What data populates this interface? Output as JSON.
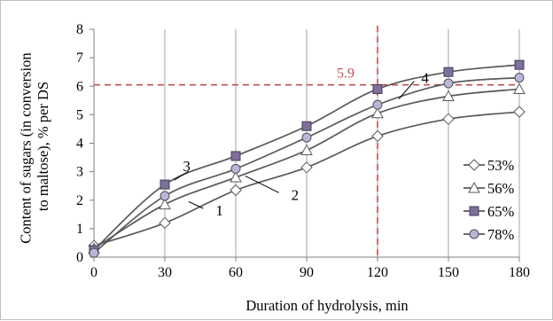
{
  "chart_data": {
    "type": "line",
    "xlabel": "Duration of hydrolysis, min",
    "ylabel_lines": [
      "Content of sugars (in conversion",
      "to maltose), % per DS"
    ],
    "x": [
      0,
      30,
      60,
      90,
      120,
      150,
      180
    ],
    "xlim": [
      0,
      180
    ],
    "ylim": [
      0,
      8
    ],
    "xticks": [
      0,
      30,
      60,
      90,
      120,
      150,
      180
    ],
    "yticks": [
      0,
      1,
      2,
      3,
      4,
      5,
      6,
      7,
      8
    ],
    "grid": "vertical",
    "legend_position": "right",
    "series": [
      {
        "name": "53%",
        "marker": "diamond",
        "values": [
          0.4,
          1.2,
          2.35,
          3.15,
          4.25,
          4.85,
          5.1
        ]
      },
      {
        "name": "56%",
        "marker": "triangle",
        "values": [
          0.3,
          1.85,
          2.8,
          3.75,
          5.05,
          5.65,
          5.9
        ]
      },
      {
        "name": "65%",
        "marker": "square",
        "values": [
          0.25,
          2.55,
          3.55,
          4.6,
          5.9,
          6.5,
          6.75
        ]
      },
      {
        "name": "78%",
        "marker": "circle",
        "values": [
          0.15,
          2.15,
          3.1,
          4.2,
          5.35,
          6.1,
          6.3
        ]
      }
    ],
    "callouts": [
      {
        "label": "1",
        "x": 50,
        "y": 1.65
      },
      {
        "label": "2",
        "x": 82,
        "y": 2.2
      },
      {
        "label": "3",
        "x": 40,
        "y": 3.2
      },
      {
        "label": "4",
        "x": 137,
        "y": 6.3
      }
    ],
    "reference_lines": {
      "x": 120,
      "y": 6.05,
      "label": "5.9",
      "color": "#c0504d"
    }
  }
}
